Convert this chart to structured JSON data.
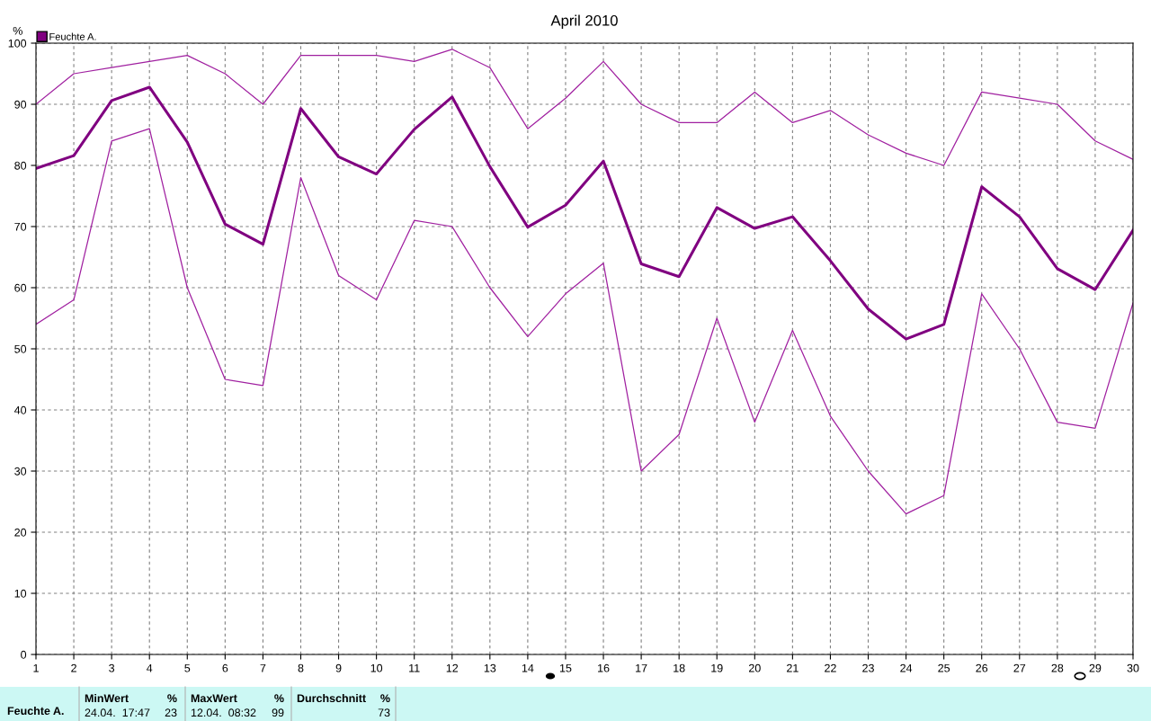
{
  "chart_data": {
    "type": "line",
    "title": "April 2010",
    "ylabel": "%",
    "x": [
      1,
      2,
      3,
      4,
      5,
      6,
      7,
      8,
      9,
      10,
      11,
      12,
      13,
      14,
      15,
      16,
      17,
      18,
      19,
      20,
      21,
      22,
      23,
      24,
      25,
      26,
      27,
      28,
      29,
      30
    ],
    "series": [
      {
        "color": "#a020a0",
        "values": [
          90,
          95,
          96,
          97,
          98,
          95,
          90,
          98,
          98,
          98,
          97,
          99,
          96,
          86,
          91,
          97,
          90,
          87,
          87,
          92,
          87,
          89,
          85,
          82,
          80,
          92,
          91,
          90,
          84,
          81
        ]
      },
      {
        "name": "Feuchte A.",
        "color": "#800080",
        "values": [
          79.5,
          81.6,
          90.6,
          92.8,
          83.8,
          70.4,
          67.1,
          89.3,
          81.4,
          78.6,
          85.9,
          91.2,
          79.8,
          69.9,
          73.5,
          80.7,
          63.9,
          61.8,
          73.1,
          69.7,
          71.6,
          64.4,
          56.5,
          51.6,
          54.0,
          76.5,
          71.6,
          63.1,
          59.7,
          69.4
        ]
      },
      {
        "color": "#a020a0",
        "values": [
          54,
          58,
          84,
          86,
          60,
          45,
          44,
          78,
          62,
          58,
          71,
          70,
          60,
          52,
          59,
          64,
          30,
          36,
          55,
          38,
          53,
          39,
          30,
          23,
          26,
          59,
          50,
          38,
          37,
          57.5
        ]
      }
    ],
    "xlim": [
      1,
      30
    ],
    "xticks": [
      1,
      2,
      3,
      4,
      5,
      6,
      7,
      8,
      9,
      10,
      11,
      12,
      13,
      14,
      15,
      16,
      17,
      18,
      19,
      20,
      21,
      22,
      23,
      24,
      25,
      26,
      27,
      28,
      29,
      30
    ],
    "ylim": [
      0,
      100
    ],
    "yticks": [
      0,
      10,
      20,
      30,
      40,
      50,
      60,
      70,
      80,
      90,
      100
    ],
    "grid": true,
    "line_style": "solid",
    "marker": "none",
    "legend": "top left",
    "annotations": [
      "Feuchte A.",
      "MinWert",
      "%",
      "24.04.  17:47",
      "23",
      "MaxWert",
      "%",
      "12.04.  08:32",
      "99",
      "Durchschnitt",
      "%",
      "73"
    ]
  }
}
